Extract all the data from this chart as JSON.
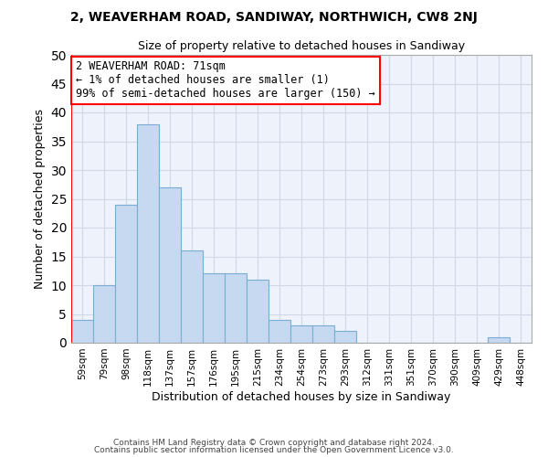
{
  "title1": "2, WEAVERHAM ROAD, SANDIWAY, NORTHWICH, CW8 2NJ",
  "title2": "Size of property relative to detached houses in Sandiway",
  "xlabel": "Distribution of detached houses by size in Sandiway",
  "ylabel": "Number of detached properties",
  "bar_values": [
    4,
    10,
    24,
    38,
    27,
    16,
    12,
    12,
    11,
    4,
    3,
    3,
    2,
    0,
    0,
    0,
    0,
    0,
    0,
    1,
    0
  ],
  "bin_labels": [
    "59sqm",
    "79sqm",
    "98sqm",
    "118sqm",
    "137sqm",
    "157sqm",
    "176sqm",
    "195sqm",
    "215sqm",
    "234sqm",
    "254sqm",
    "273sqm",
    "293sqm",
    "312sqm",
    "331sqm",
    "351sqm",
    "370sqm",
    "390sqm",
    "409sqm",
    "429sqm",
    "448sqm"
  ],
  "bar_color": "#c6d9f0",
  "bar_edge_color": "#7aadd4",
  "grid_color": "#d0d8e8",
  "background_color": "#eef2fa",
  "annotation_text": "2 WEAVERHAM ROAD: 71sqm\n← 1% of detached houses are smaller (1)\n99% of semi-detached houses are larger (150) →",
  "annotation_box_color": "white",
  "annotation_box_edge_color": "red",
  "vline_color": "red",
  "footer1": "Contains HM Land Registry data © Crown copyright and database right 2024.",
  "footer2": "Contains public sector information licensed under the Open Government Licence v3.0.",
  "ylim": [
    0,
    50
  ],
  "yticks": [
    0,
    5,
    10,
    15,
    20,
    25,
    30,
    35,
    40,
    45,
    50
  ]
}
